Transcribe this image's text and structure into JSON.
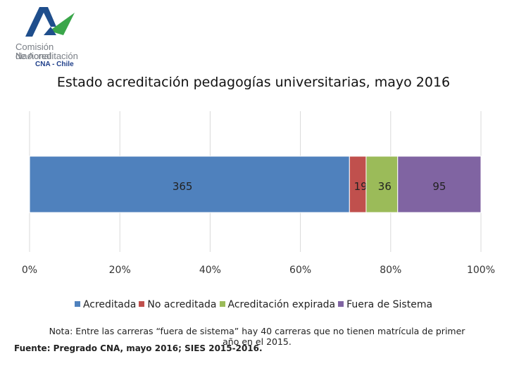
{
  "logo": {
    "line1": "Comisión Nacional",
    "line2": "de Acreditación",
    "line3": "CNA - Chile"
  },
  "chart_data": {
    "type": "stacked-bar-100",
    "title": "Estado acreditación pedagogías universitarias, mayo 2016",
    "categories": [
      ""
    ],
    "series": [
      {
        "name": "Acreditada",
        "values": [
          365
        ],
        "color": "#4f81bd"
      },
      {
        "name": "No acreditada",
        "values": [
          19
        ],
        "color": "#c0504d"
      },
      {
        "name": "Acreditación expirada",
        "values": [
          36
        ],
        "color": "#9bbb59"
      },
      {
        "name": "Fuera de Sistema",
        "values": [
          95
        ],
        "color": "#8064a2"
      }
    ],
    "x_ticks": [
      "0%",
      "20%",
      "40%",
      "60%",
      "80%",
      "100%"
    ],
    "xlim": [
      0,
      100
    ],
    "grid": true,
    "legend": "bottom"
  },
  "note": {
    "line1": "Nota: Entre las carreras “fuera de sistema” hay 40 carreras que no tienen matrícula de primer",
    "line2": "año en el 2015."
  },
  "source": "Fuente: Pregrado CNA, mayo 2016; SIES 2015-2016."
}
